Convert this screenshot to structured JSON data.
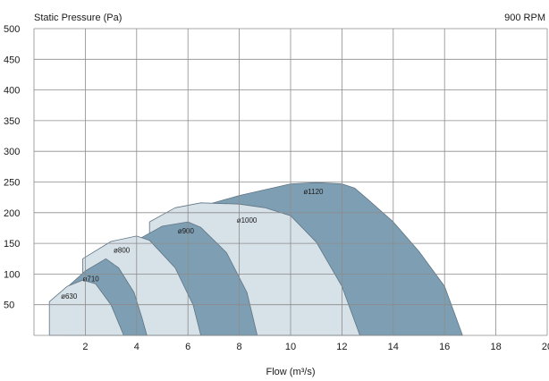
{
  "chart_data": {
    "type": "area",
    "title": "",
    "ylabel": "Static Pressure (Pa)",
    "xlabel": "Flow (m³/s)",
    "annotation": "900 RPM",
    "xlim": [
      0,
      20
    ],
    "ylim": [
      0,
      500
    ],
    "x_ticks": [
      2,
      4,
      6,
      8,
      10,
      12,
      14,
      16,
      18,
      20
    ],
    "y_ticks": [
      50,
      100,
      150,
      200,
      250,
      300,
      350,
      400,
      450,
      500
    ],
    "grid": true,
    "series": [
      {
        "name": "ø1120",
        "color": "#7e9fb3",
        "label_at": [
          10.5,
          230
        ],
        "points": [
          [
            6.5,
            210
          ],
          [
            8,
            228
          ],
          [
            10,
            247
          ],
          [
            11,
            249
          ],
          [
            12,
            247
          ],
          [
            12.5,
            240
          ],
          [
            13,
            222
          ],
          [
            14,
            185
          ],
          [
            15,
            137
          ],
          [
            16,
            80
          ],
          [
            16.7,
            0
          ]
        ]
      },
      {
        "name": "ø1000",
        "color": "#d7e1e8",
        "label_at": [
          7.9,
          184
        ],
        "points": [
          [
            4.5,
            185
          ],
          [
            5.5,
            208
          ],
          [
            6.5,
            216
          ],
          [
            8,
            214
          ],
          [
            9,
            208
          ],
          [
            10,
            195
          ],
          [
            11,
            152
          ],
          [
            12,
            80
          ],
          [
            12.7,
            0
          ]
        ]
      },
      {
        "name": "ø900",
        "color": "#7e9fb3",
        "label_at": [
          5.6,
          166
        ],
        "points": [
          [
            4,
            155
          ],
          [
            5,
            178
          ],
          [
            6,
            185
          ],
          [
            6.5,
            176
          ],
          [
            7.5,
            135
          ],
          [
            8.3,
            70
          ],
          [
            8.7,
            0
          ]
        ]
      },
      {
        "name": "ø800",
        "color": "#d7e1e8",
        "label_at": [
          3.1,
          135
        ],
        "points": [
          [
            1.9,
            125
          ],
          [
            3,
            153
          ],
          [
            4,
            162
          ],
          [
            4.5,
            155
          ],
          [
            5.5,
            110
          ],
          [
            6.2,
            50
          ],
          [
            6.5,
            0
          ]
        ]
      },
      {
        "name": "ø710",
        "color": "#7e9fb3",
        "label_at": [
          1.9,
          88
        ],
        "points": [
          [
            1.2,
            75
          ],
          [
            2,
            105
          ],
          [
            2.8,
            125
          ],
          [
            3.3,
            110
          ],
          [
            3.9,
            70
          ],
          [
            4.2,
            30
          ],
          [
            4.4,
            0
          ]
        ]
      },
      {
        "name": "ø630",
        "color": "#d7e1e8",
        "label_at": [
          1.05,
          60
        ],
        "points": [
          [
            0.6,
            55
          ],
          [
            1.3,
            80
          ],
          [
            1.9,
            90
          ],
          [
            2.4,
            84
          ],
          [
            3,
            50
          ],
          [
            3.3,
            20
          ],
          [
            3.5,
            0
          ]
        ]
      }
    ]
  }
}
